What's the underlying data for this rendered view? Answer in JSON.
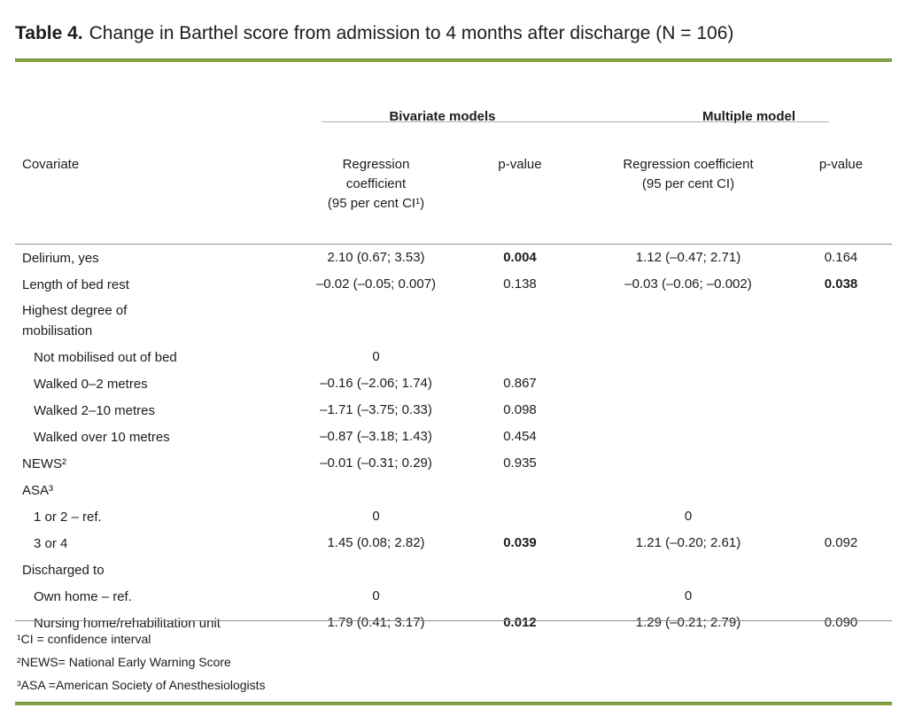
{
  "title": {
    "bold": "Table 4.",
    "rest": "Change in Barthel score from admission to 4 months after discharge (N = 106)"
  },
  "header": {
    "spanner_bivariate": "Bivariate models",
    "spanner_multiple": "Multiple model",
    "col_covariate": "Covariate",
    "col_biv_coef": "Regression\ncoefficient\n(95 per cent CI¹)",
    "col_biv_p": "p-value",
    "col_mult_coef": "Regression coefficient\n(95 per cent CI)",
    "col_mult_p": "p-value"
  },
  "rows": [
    {
      "label": "Delirium, yes",
      "biv_coef": "2.10 (0.67; 3.53)",
      "biv_p": "0.004",
      "mult_coef": "1.12 (–0.47; 2.71)",
      "mult_p": "0.164"
    },
    {
      "label": "Length of bed rest",
      "biv_coef": "–0.02 (–0.05; 0.007)",
      "biv_p": "0.138",
      "mult_coef": "–0.03 (–0.06; –0.002)",
      "mult_p": "0.038"
    },
    {
      "label": "Highest degree of\nmobilisation",
      "biv_coef": "",
      "biv_p": "",
      "mult_coef": "",
      "mult_p": ""
    },
    {
      "label": "Not mobilised out of bed",
      "biv_coef": "0",
      "biv_p": "",
      "mult_coef": "",
      "mult_p": ""
    },
    {
      "label": "Walked 0–2 metres",
      "biv_coef": "–0.16 (–2.06; 1.74)",
      "biv_p": "0.867",
      "mult_coef": "",
      "mult_p": ""
    },
    {
      "label": "Walked 2–10 metres",
      "biv_coef": "–1.71 (–3.75; 0.33)",
      "biv_p": "0.098",
      "mult_coef": "",
      "mult_p": ""
    },
    {
      "label": "Walked over 10 metres",
      "biv_coef": "–0.87 (–3.18; 1.43)",
      "biv_p": "0.454",
      "mult_coef": "",
      "mult_p": ""
    },
    {
      "label": "NEWS²",
      "biv_coef": "–0.01 (–0.31; 0.29)",
      "biv_p": "0.935",
      "mult_coef": "",
      "mult_p": ""
    },
    {
      "label": "ASA³",
      "biv_coef": "",
      "biv_p": "",
      "mult_coef": "",
      "mult_p": ""
    },
    {
      "label": "1 or 2 – ref.",
      "biv_coef": "0",
      "biv_p": "",
      "mult_coef": "0",
      "mult_p": ""
    },
    {
      "label": "3 or 4",
      "biv_coef": "1.45 (0.08; 2.82)",
      "biv_p": "0.039",
      "mult_coef": "1.21 (–0.20; 2.61)",
      "mult_p": "0.092"
    },
    {
      "label": "Discharged to",
      "biv_coef": "",
      "biv_p": "",
      "mult_coef": "",
      "mult_p": ""
    },
    {
      "label": "Own home – ref.",
      "biv_coef": "0",
      "biv_p": "",
      "mult_coef": "0",
      "mult_p": ""
    },
    {
      "label": "Nursing home/rehabilitation unit",
      "biv_coef": "1.79 (0.41; 3.17)",
      "biv_p": "0.012",
      "mult_coef": "1.29 (–0.21; 2.79)",
      "mult_p": "0.090"
    }
  ],
  "footnotes": {
    "f1": "¹CI = confidence interval",
    "f2": "²NEWS= National Early Warning Score",
    "f3": "³ASA =American Society of Anesthesiologists"
  },
  "colors": {
    "accent_green": "#86a346",
    "rule_gray": "#8f8f8f",
    "spanner_line_gray": "#b0b0b0"
  }
}
